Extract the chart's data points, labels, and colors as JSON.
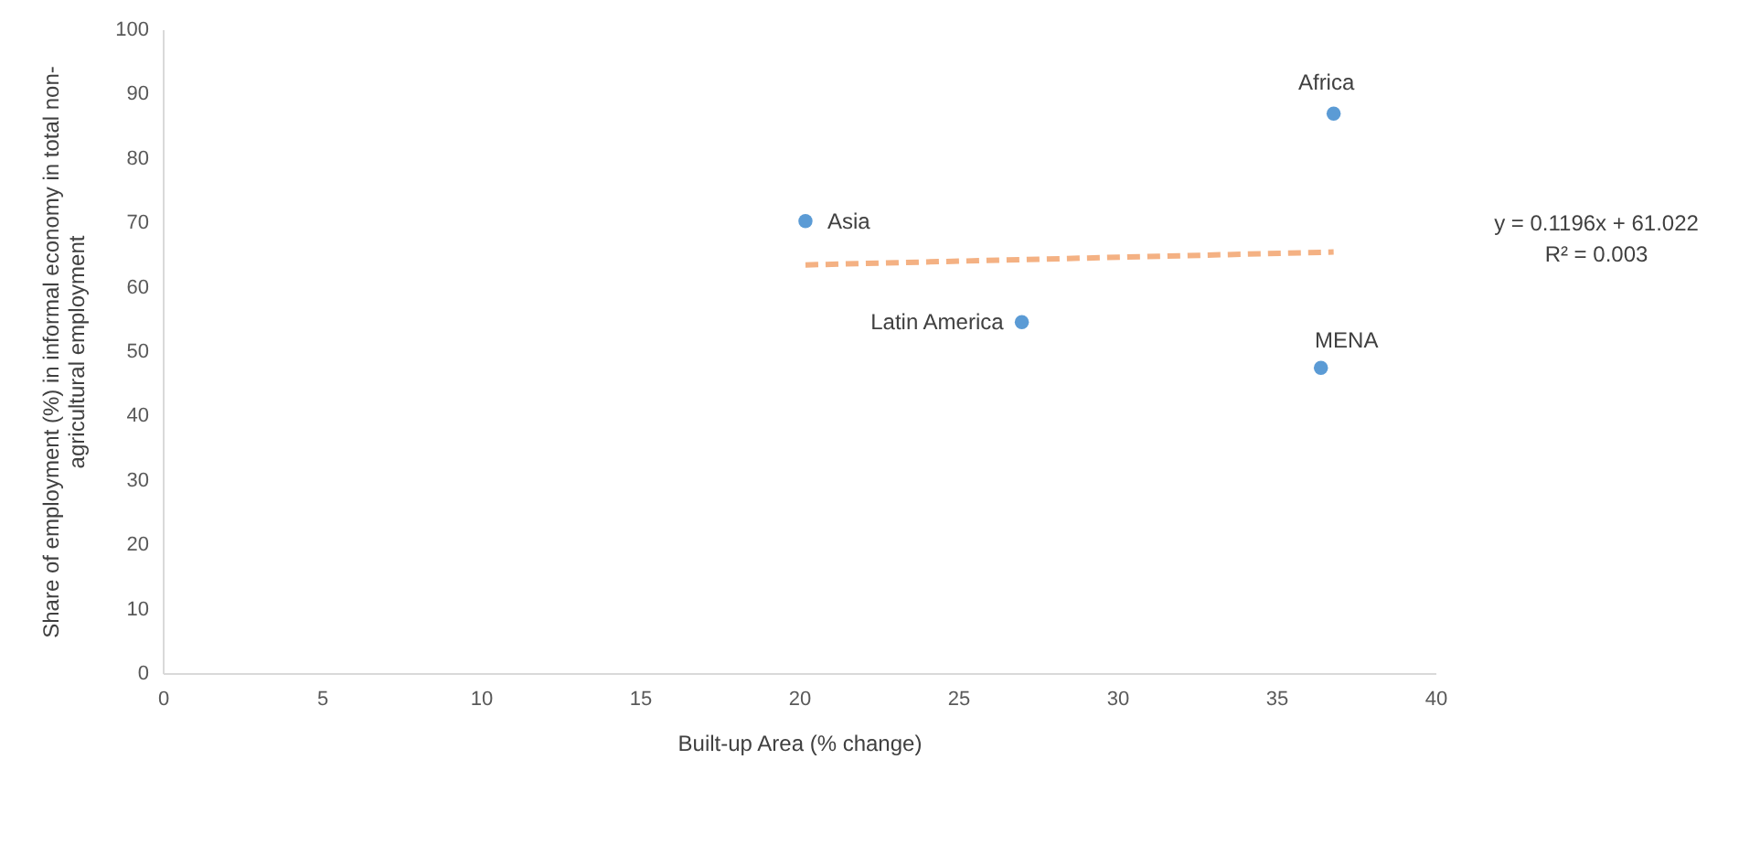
{
  "chart_data": {
    "type": "scatter",
    "xlabel": "Built-up Area (% change)",
    "ylabel": "Share of employment (%) in informal economy in total non-agricultural employment",
    "xlim": [
      0,
      40
    ],
    "xticks": [
      0,
      5,
      10,
      15,
      20,
      25,
      30,
      35,
      40
    ],
    "ylim": [
      0,
      100
    ],
    "yticks": [
      0,
      10,
      20,
      30,
      40,
      50,
      60,
      70,
      80,
      90,
      100
    ],
    "grid": false,
    "series": [
      {
        "color": "#5b9bd5",
        "x": [
          20.2,
          36.8,
          27.0,
          36.4
        ],
        "values": [
          70.2,
          86.9,
          54.5,
          47.4
        ]
      },
      {
        "type": "line",
        "color": "#f4b183",
        "line_style": "dashed",
        "x": [
          20.2,
          36.8
        ],
        "values": [
          63.4,
          65.4
        ]
      }
    ],
    "annotations": [
      {
        "text": "Asia",
        "x": 20.2,
        "y": 70.2
      },
      {
        "text": "Africa",
        "x": 36.8,
        "y": 86.9
      },
      {
        "text": "Latin America",
        "x": 27.0,
        "y": 54.5
      },
      {
        "text": "MENA",
        "x": 36.4,
        "y": 47.4
      },
      "y = 0.1196x + 61.022",
      "R² = 0.003"
    ]
  }
}
